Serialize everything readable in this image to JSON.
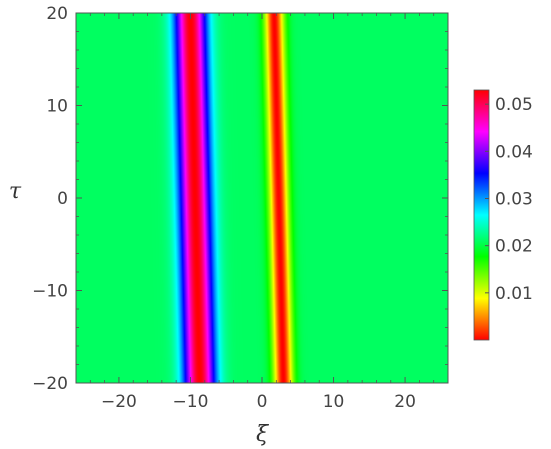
{
  "chart_data": {
    "type": "heatmap",
    "title": "",
    "xlabel": "ξ",
    "ylabel": "τ",
    "xlim": [
      -26,
      26
    ],
    "ylim": [
      -20,
      20
    ],
    "x_ticks": [
      {
        "value": -20,
        "label": "−20"
      },
      {
        "value": -10,
        "label": "−10"
      },
      {
        "value": 0,
        "label": "0"
      },
      {
        "value": 10,
        "label": "10"
      },
      {
        "value": 20,
        "label": "20"
      }
    ],
    "y_ticks": [
      {
        "value": -20,
        "label": "−20"
      },
      {
        "value": -10,
        "label": "−10"
      },
      {
        "value": 0,
        "label": "0"
      },
      {
        "value": 10,
        "label": "10"
      },
      {
        "value": 20,
        "label": "20"
      }
    ],
    "grid": false,
    "colorbar": {
      "placement": "right",
      "range": [
        0.0,
        0.053
      ],
      "ticks": [
        {
          "value": 0.01,
          "label": "0.01"
        },
        {
          "value": 0.02,
          "label": "0.02"
        },
        {
          "value": 0.03,
          "label": "0.03"
        },
        {
          "value": 0.04,
          "label": "0.04"
        },
        {
          "value": 0.05,
          "label": "0.05"
        }
      ],
      "colormap": "Hue (red → yellow → green → cyan → blue → magenta → red)"
    },
    "background_value": 0.021,
    "features": [
      {
        "kind": "peak",
        "value_max": 0.053,
        "center_at_tau_minus20": -8.7,
        "center_at_tau_20": -10.0,
        "width": 2.2
      },
      {
        "kind": "dip",
        "value_min": 0.0,
        "center_at_tau_minus20": 3.0,
        "center_at_tau_20": 1.7,
        "width": 1.4
      }
    ]
  }
}
